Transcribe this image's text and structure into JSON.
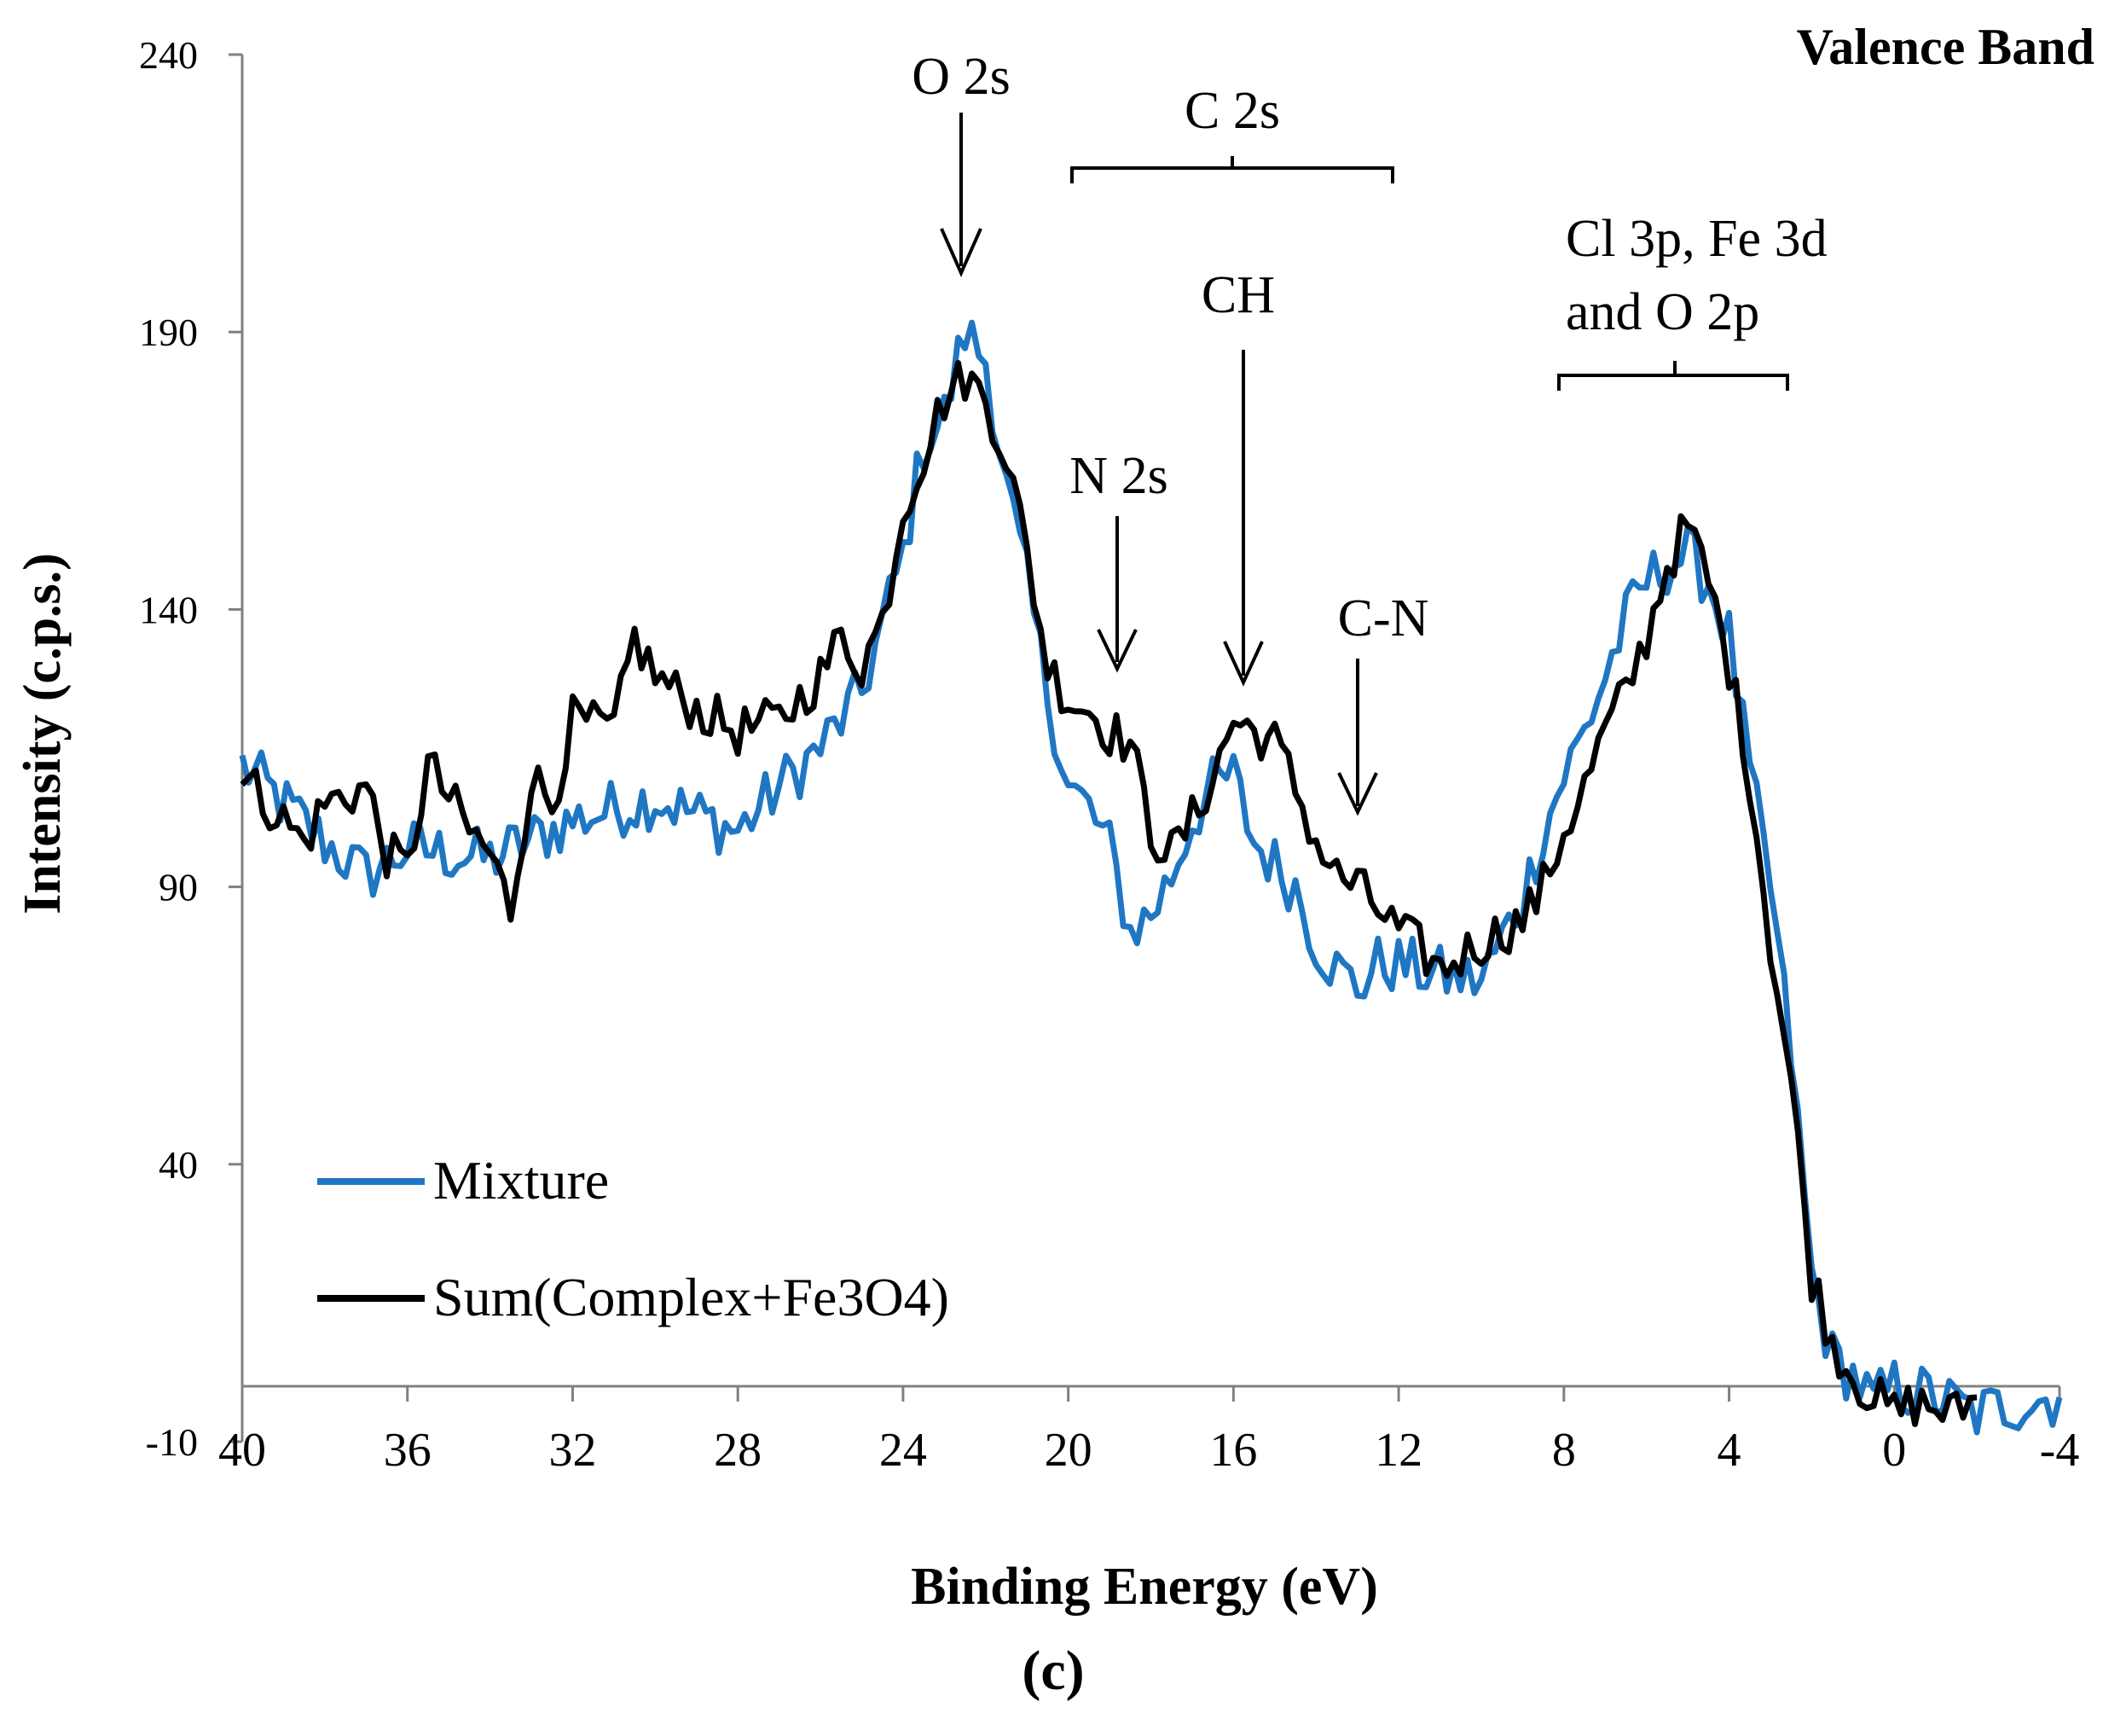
{
  "chart_data": {
    "type": "line",
    "title": "Valence Band",
    "xlabel": "Binding Energy (eV)",
    "ylabel": "Intensity (c.p.s.)",
    "caption": "(c)",
    "xlim": [
      40,
      -4
    ],
    "ylim": [
      -10,
      240
    ],
    "x_ticks": [
      "40",
      "36",
      "32",
      "28",
      "24",
      "20",
      "16",
      "12",
      "8",
      "4",
      "0",
      "-4"
    ],
    "y_ticks": [
      "240",
      "190",
      "140",
      "90",
      "40",
      "-10"
    ],
    "legend": [
      "Mixture",
      "Sum(Complex+Fe3O4)"
    ],
    "annotations": {
      "o2s": "O 2s",
      "c2s": "C 2s",
      "ch": "CH",
      "n2s": "N 2s",
      "cn": "C-N",
      "cl_line1": "Cl 3p, Fe 3d",
      "cl_line2": "and O 2p"
    },
    "colors": {
      "mixture": "#1f77c4",
      "sum": "#000000"
    },
    "series": [
      {
        "name": "Mixture",
        "x": [
          40,
          38,
          37,
          36,
          34,
          32,
          30,
          28,
          27,
          26,
          25,
          24,
          23.5,
          23,
          22.5,
          22,
          21.5,
          21,
          20.5,
          20,
          19.5,
          19,
          18.5,
          18,
          17.5,
          17,
          16.5,
          16,
          15.5,
          15,
          14.5,
          14,
          13.5,
          13,
          12.5,
          12,
          11,
          10,
          9,
          8.5,
          8,
          7.5,
          7,
          6.5,
          6,
          5.5,
          5,
          4.5,
          4,
          3.5,
          3,
          2.5,
          2,
          1.5,
          1,
          0.5,
          0,
          -1,
          -2,
          -3,
          -4
        ],
        "values": [
          112,
          98,
          92,
          97,
          95,
          102,
          106,
          100,
          108,
          115,
          125,
          150,
          170,
          175,
          190,
          185,
          162,
          145,
          125,
          108,
          104,
          97,
          82,
          85,
          92,
          102,
          108,
          110,
          98,
          94,
          90,
          80,
          75,
          72,
          76,
          76,
          74,
          73,
          88,
          100,
          110,
          118,
          128,
          138,
          145,
          148,
          150,
          145,
          135,
          110,
          90,
          60,
          20,
          5,
          2,
          -3,
          0,
          -2,
          -5,
          -3,
          -2
        ]
      },
      {
        "name": "Sum(Complex+Fe3O4)",
        "x": [
          40,
          38.5,
          38,
          37,
          36.5,
          36,
          35.5,
          34.5,
          34,
          33.5,
          33,
          32.5,
          32,
          31,
          30.5,
          30,
          29,
          28,
          27,
          26,
          25.5,
          25,
          24.5,
          24,
          23.5,
          23,
          22.5,
          22,
          21.5,
          21,
          20.5,
          20,
          19.5,
          19,
          18.5,
          18,
          17.5,
          17,
          16.5,
          16,
          15.5,
          15,
          14.5,
          14,
          13.5,
          13,
          12.5,
          12,
          11.5,
          11,
          10,
          9,
          8.5,
          8,
          7.5,
          7,
          6.5,
          6,
          5.5,
          5,
          4.5,
          4,
          3.5,
          3,
          2.5,
          2,
          1.5,
          1,
          0.5,
          0,
          -0.5,
          -1,
          -1.5,
          -2
        ],
        "values": [
          110,
          98,
          105,
          108,
          96,
          93,
          112,
          100,
          96,
          86,
          110,
          105,
          120,
          118,
          135,
          128,
          122,
          118,
          120,
          128,
          135,
          130,
          138,
          158,
          168,
          178,
          182,
          178,
          168,
          150,
          130,
          124,
          122,
          118,
          116,
          100,
          96,
          102,
          110,
          120,
          118,
          116,
          108,
          98,
          92,
          90,
          86,
          82,
          79,
          75,
          80,
          84,
          90,
          100,
          108,
          118,
          125,
          135,
          148,
          155,
          145,
          130,
          110,
          80,
          55,
          20,
          8,
          2,
          -2,
          -5,
          -3,
          -4,
          -5,
          -2
        ]
      }
    ]
  }
}
